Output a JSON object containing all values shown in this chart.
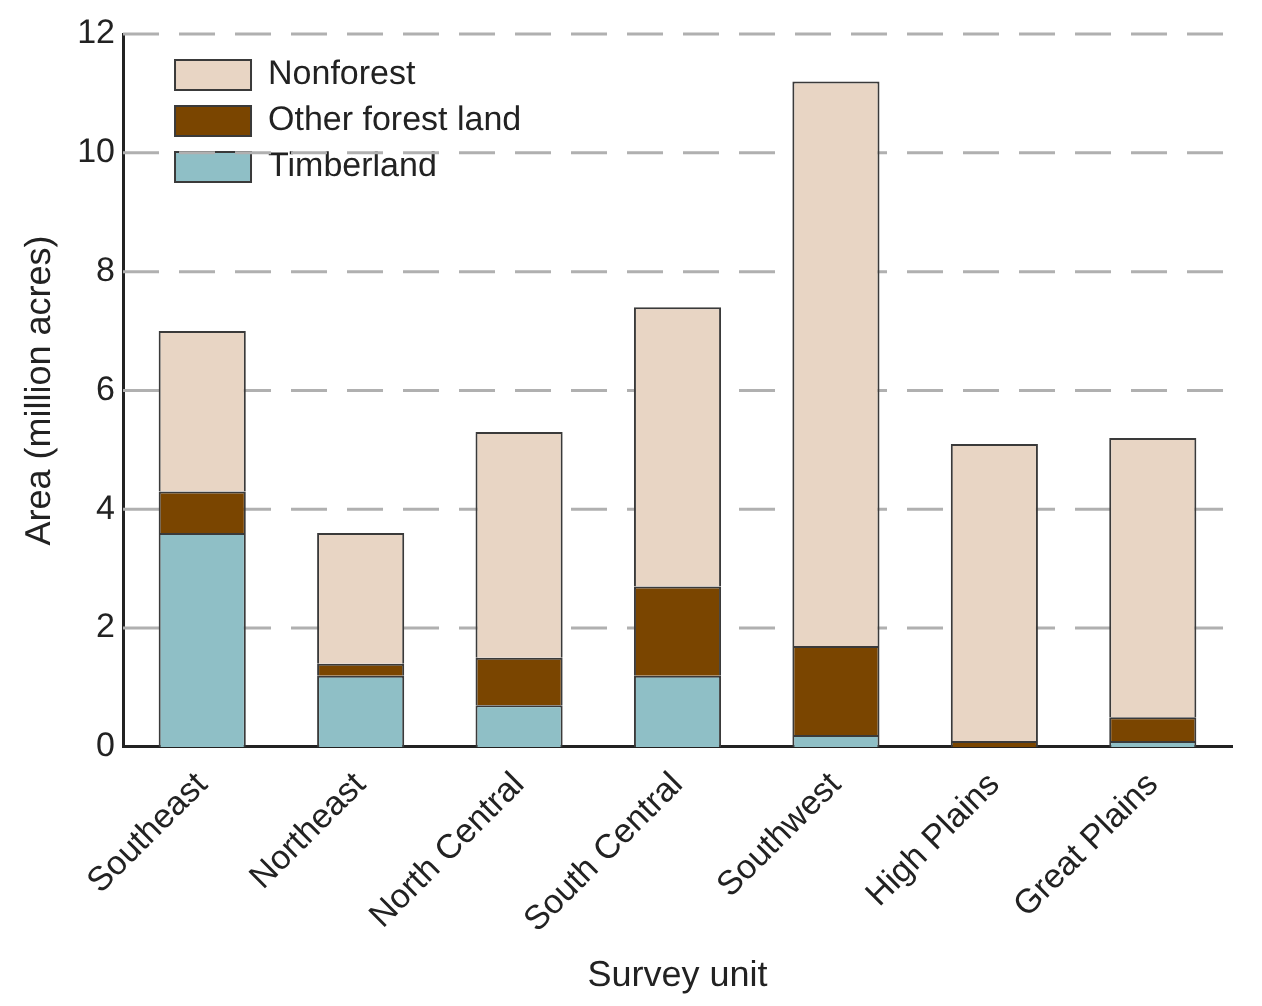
{
  "chart_data": {
    "type": "bar",
    "stacked": true,
    "xlabel": "Survey unit",
    "ylabel": "Area (million acres)",
    "categories": [
      "Southeast",
      "Northeast",
      "North Central",
      "South Central",
      "Southwest",
      "High Plains",
      "Great Plains"
    ],
    "series": [
      {
        "name": "Timberland",
        "color": "#8fbfc6",
        "values": [
          3.6,
          1.2,
          0.7,
          1.2,
          0.2,
          0,
          0.1
        ]
      },
      {
        "name": "Other forest land",
        "color": "#7a4500",
        "values": [
          0.7,
          0.2,
          0.8,
          1.5,
          1.5,
          0.1,
          0.4
        ]
      },
      {
        "name": "Nonforest",
        "color": "#e8d5c4",
        "values": [
          2.7,
          2.2,
          3.8,
          4.7,
          9.5,
          5.0,
          4.7
        ]
      }
    ],
    "ylim": [
      0,
      12
    ],
    "yticks": [
      0,
      2,
      4,
      6,
      8,
      10,
      12
    ],
    "grid": "y",
    "legend": "top left"
  }
}
